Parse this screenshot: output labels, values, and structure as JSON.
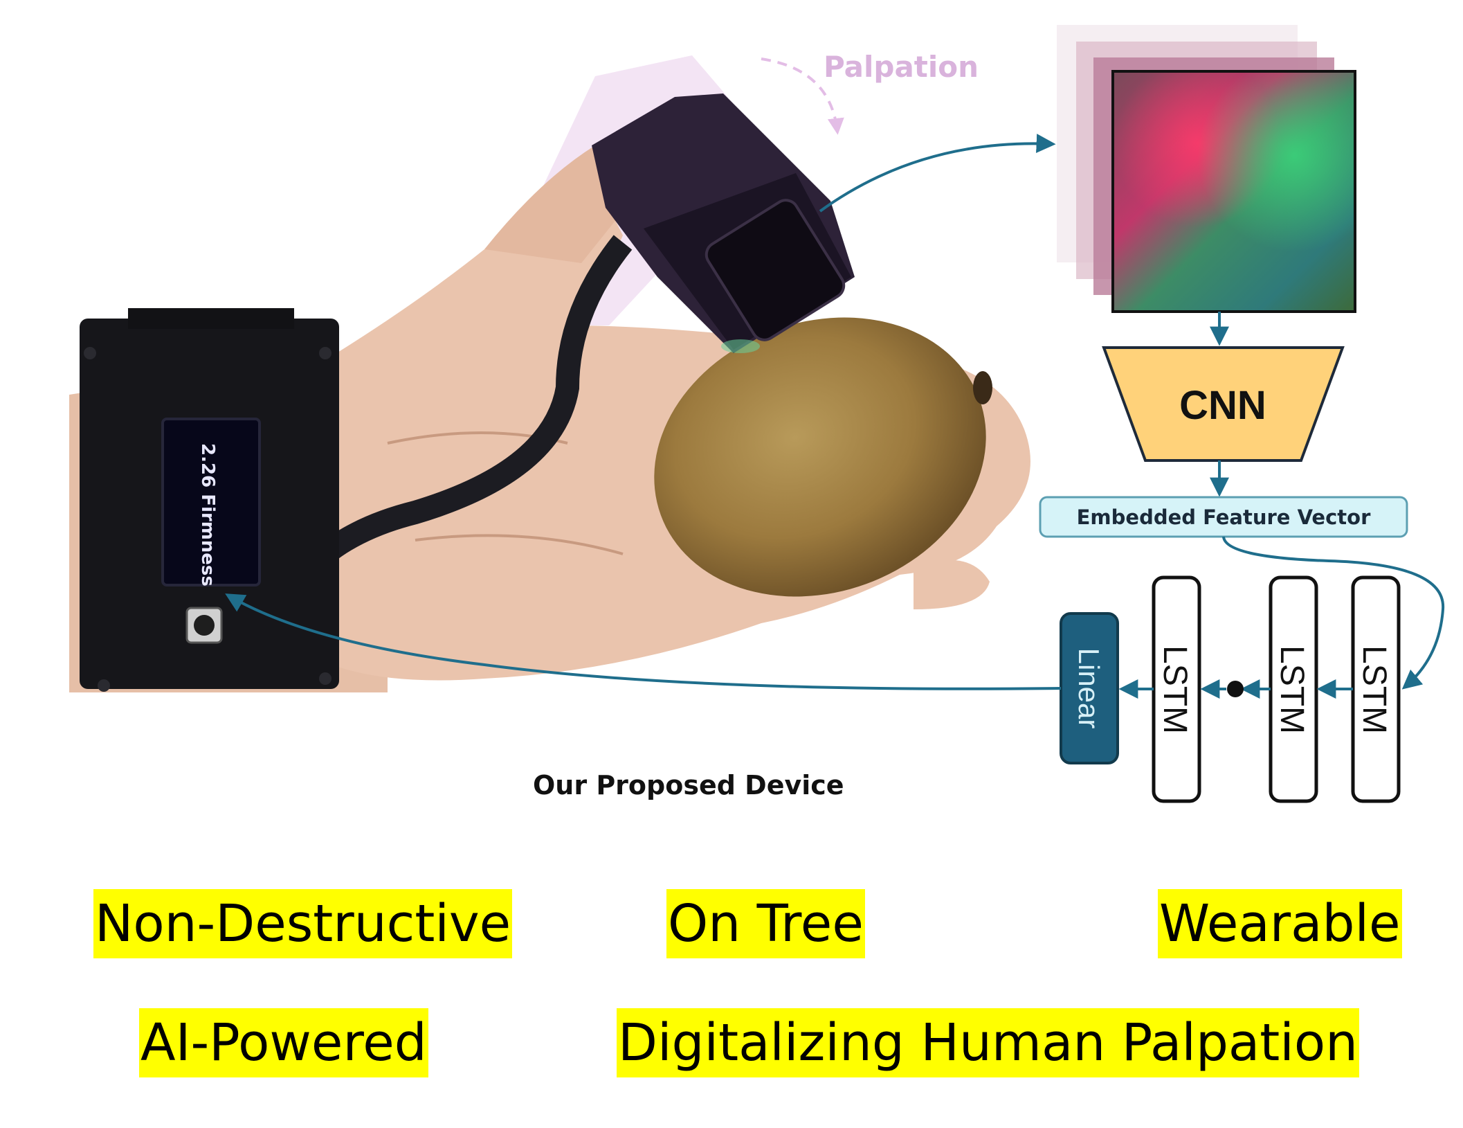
{
  "annotation": {
    "palpation_label": "Palpation"
  },
  "device": {
    "caption": "Our Proposed Device",
    "screen_text": "2.26 Firmness"
  },
  "pipeline": {
    "cnn_label": "CNN",
    "feature_label": "Embedded Feature Vector",
    "lstm_labels": [
      "LSTM",
      "LSTM",
      "LSTM"
    ],
    "linear_label": "Linear",
    "arrow_color": "#1f6e8c",
    "cnn_color": "#ffd27a",
    "linear_color": "#1e5f7e",
    "feature_color": "#d6f3f8"
  },
  "keywords": {
    "non_destructive": "Non-Destructive",
    "on_tree": "On Tree",
    "wearable": "Wearable",
    "ai_powered": "AI-Powered",
    "digitalizing": "Digitalizing Human Palpation"
  }
}
